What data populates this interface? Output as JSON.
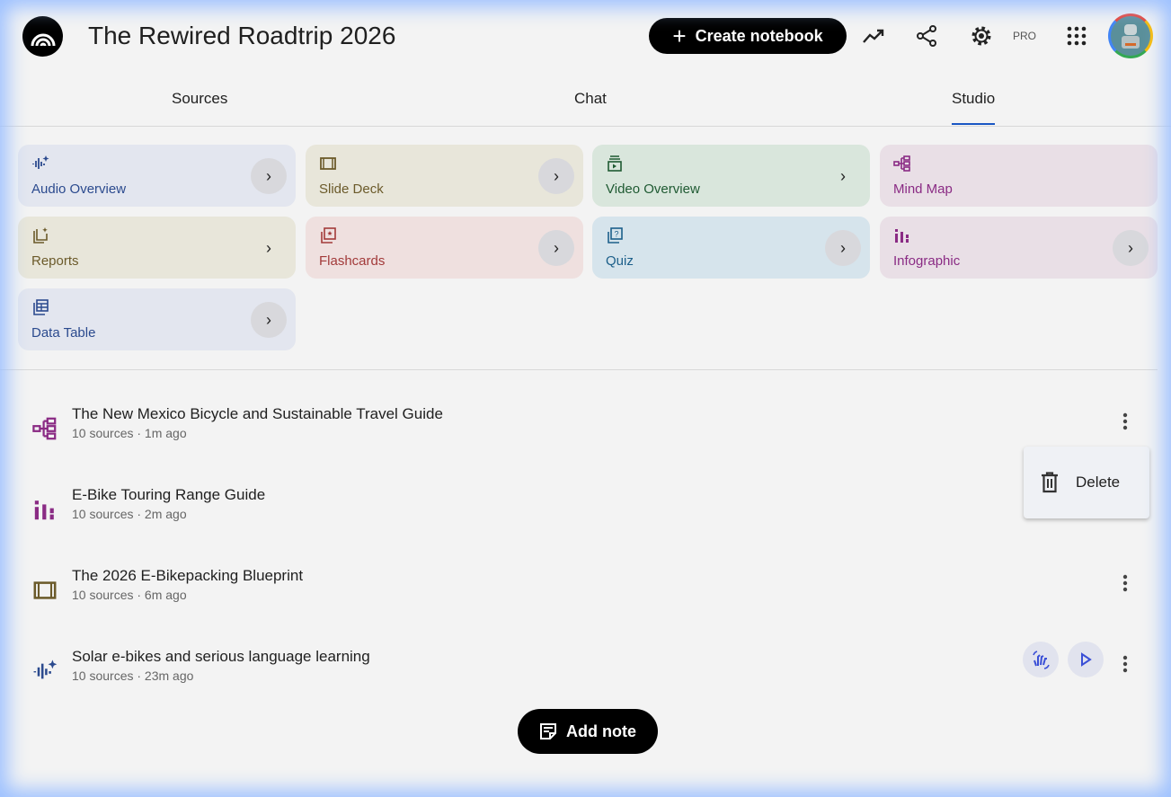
{
  "header": {
    "title": "The Rewired Roadtrip 2026",
    "create_label": "Create notebook",
    "pro_label": "PRO"
  },
  "tabs": [
    {
      "label": "Sources"
    },
    {
      "label": "Chat"
    },
    {
      "label": "Studio",
      "active": true
    }
  ],
  "accent": "#1a57c4",
  "studio_cards": [
    {
      "label": "Audio Overview",
      "icon": "audio-sparkle-icon",
      "bg": "#e3e6ef",
      "color": "#2b4a8e"
    },
    {
      "label": "Slide Deck",
      "icon": "slides-icon",
      "bg": "#e8e6da",
      "color": "#6b5a2a"
    },
    {
      "label": "Video Overview",
      "icon": "video-icon",
      "bg": "#d9e6dc",
      "color": "#1f5a32"
    },
    {
      "label": "Mind Map",
      "icon": "mind-map-icon",
      "bg": "#e9dfe6",
      "color": "#8a2b84"
    },
    {
      "label": "Reports",
      "icon": "reports-icon",
      "bg": "#e8e6da",
      "color": "#6b5a2a"
    },
    {
      "label": "Flashcards",
      "icon": "flashcards-icon",
      "bg": "#efe0df",
      "color": "#a23a3a"
    },
    {
      "label": "Quiz",
      "icon": "quiz-icon",
      "bg": "#d6e4ec",
      "color": "#1c5f8a"
    },
    {
      "label": "Infographic",
      "icon": "infographic-icon",
      "bg": "#e9dfe6",
      "color": "#8a2b84"
    },
    {
      "label": "Data Table",
      "icon": "data-table-icon",
      "bg": "#e3e6ef",
      "color": "#2b4a8e"
    }
  ],
  "outputs": [
    {
      "title": "The New Mexico Bicycle and Sustainable Travel Guide",
      "meta": "10 sources · 1m ago",
      "icon": "mind-map-icon"
    },
    {
      "title": "E-Bike Touring Range Guide",
      "meta": "10 sources · 2m ago",
      "icon": "infographic-icon"
    },
    {
      "title": "The 2026 E-Bikepacking Blueprint",
      "meta": "10 sources · 6m ago",
      "icon": "slides-icon"
    },
    {
      "title": "Solar e-bikes and serious language learning",
      "meta": "10 sources · 23m ago",
      "icon": "audio-sparkle-icon"
    }
  ],
  "context_menu": {
    "delete_label": "Delete"
  },
  "add_note_label": "Add note"
}
